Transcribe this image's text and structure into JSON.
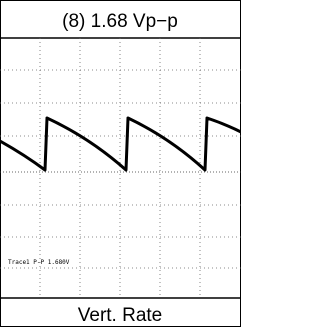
{
  "header": {
    "title": "(8) 1.68 Vp−p"
  },
  "screen": {
    "measurement": "Trace1 P-P   1.680V"
  },
  "footer": {
    "label": "Vert. Rate"
  }
}
